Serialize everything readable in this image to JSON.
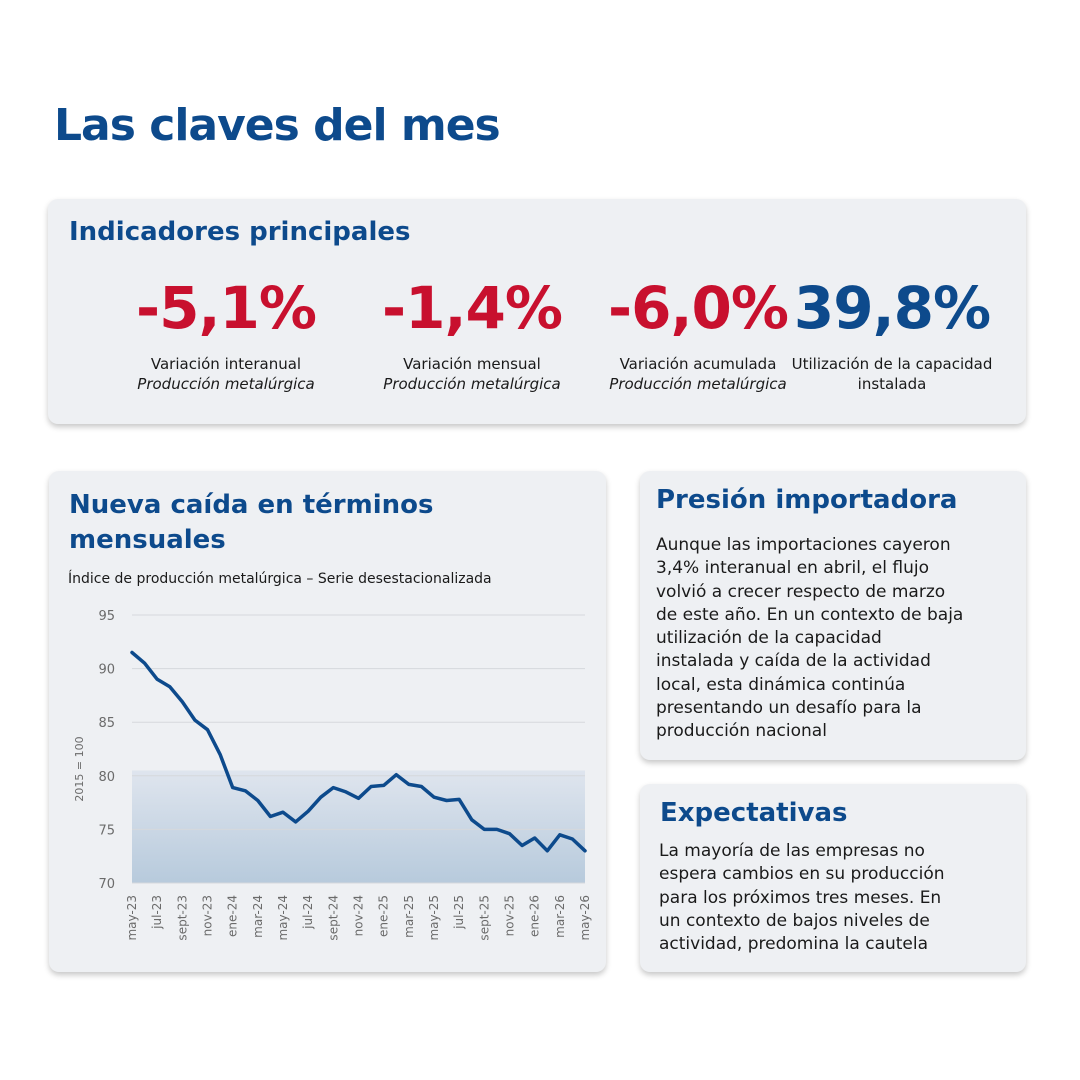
{
  "page": {
    "title": "Las claves del mes"
  },
  "indicators": {
    "title": "Indicadores principales",
    "items": [
      {
        "value": "-5,1%",
        "label": "Variación interanual",
        "sub": "Producción metalúrgica",
        "tone": "negative"
      },
      {
        "value": "-1,4%",
        "label": "Variación mensual",
        "sub": "Producción metalúrgica",
        "tone": "negative"
      },
      {
        "value": "-6,0%",
        "label": "Variación acumulada",
        "sub": "Producción metalúrgica",
        "tone": "negative"
      },
      {
        "value": "39,8%",
        "label": "Utilización de la capacidad instalada",
        "sub": "",
        "tone": "positive"
      }
    ]
  },
  "chart_card": {
    "title": "Nueva caída en términos mensuales",
    "subtitle": "Índice de producción metalúrgica – Serie desestacionalizada"
  },
  "chart_data": {
    "type": "area",
    "title": "Índice de producción metalúrgica – Serie desestacionalizada",
    "xlabel": "",
    "ylabel": "2015 = 100",
    "ylim": [
      70,
      95
    ],
    "yticks": [
      70,
      75,
      80,
      85,
      90,
      95
    ],
    "grid": true,
    "x": [
      "may-23",
      "jun-23",
      "jul-23",
      "ago-23",
      "sept-23",
      "oct-23",
      "nov-23",
      "dic-23",
      "ene-24",
      "feb-24",
      "mar-24",
      "abr-24",
      "may-24",
      "jun-24",
      "jul-24",
      "ago-24",
      "sept-24",
      "oct-24",
      "nov-24",
      "dic-24",
      "ene-25",
      "feb-25",
      "mar-25",
      "abr-25",
      "may-25",
      "jun-25",
      "jul-25",
      "ago-25",
      "sept-25",
      "oct-25",
      "nov-25",
      "dic-25",
      "ene-26",
      "feb-26",
      "mar-26",
      "abr-26",
      "may-26"
    ],
    "xtick_labels": [
      "may-23",
      "jul-23",
      "sept-23",
      "nov-23",
      "ene-24",
      "mar-24",
      "may-24",
      "jul-24",
      "sept-24",
      "nov-24",
      "ene-25",
      "mar-25",
      "may-25",
      "jul-25",
      "sept-25",
      "nov-25",
      "ene-26",
      "mar-26",
      "may-26"
    ],
    "series": [
      {
        "values": [
          91.5,
          90.5,
          89.0,
          88.3,
          86.9,
          85.2,
          84.3,
          82.0,
          78.9,
          78.6,
          77.7,
          76.2,
          76.6,
          75.7,
          76.7,
          78.0,
          78.9,
          78.5,
          77.9,
          79.0,
          79.1,
          80.1,
          79.2,
          79.0,
          78.0,
          77.7,
          77.8,
          75.9,
          75.0,
          75.0,
          74.6,
          73.5,
          74.2,
          73.0,
          74.5,
          74.1,
          73.0
        ]
      }
    ],
    "colors": {
      "line": "#0d4a8c",
      "area_top": "#dfe5ee",
      "area_bottom": "#b7cadc"
    }
  },
  "imports": {
    "title": "Presión importadora",
    "lines": [
      "Aunque las importaciones cayeron",
      "3,4% interanual en abril, el flujo",
      "volvió a crecer respecto de marzo",
      "de este año. En un contexto de baja",
      "utilización de la capacidad",
      "instalada y caída de la actividad",
      "local, esta dinámica continúa",
      "presentando un desafío para la",
      "producción nacional"
    ]
  },
  "expectations": {
    "title": "Expectativas",
    "lines": [
      "La mayoría de las empresas no",
      "espera cambios en su producción",
      "para los próximos tres meses. En",
      "un contexto de bajos niveles de",
      "actividad, predomina la cautela"
    ]
  }
}
